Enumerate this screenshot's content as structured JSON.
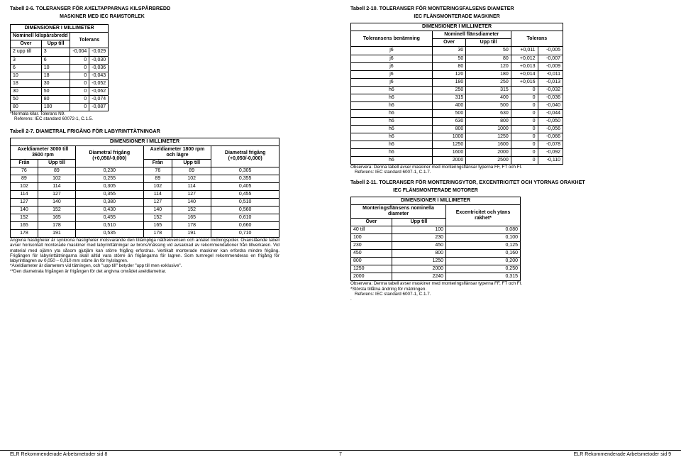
{
  "left": {
    "tab26_title": "Tabell 2-6.  TOLERANSER FÖR AXELTAPPARNAS KILSPÅRBREDD",
    "tab26_sub": "MASKINER MED IEC RAMSTORLEK",
    "dim_header": "DIMENSIONER I MILLIMETER",
    "nominell": "Nominell kilspårsbredd",
    "over": "Över",
    "upp": "Upp till",
    "tolerans": "Tolerans",
    "rows26": [
      [
        "2 upp till",
        "3",
        "-0,004",
        "-0,029"
      ],
      [
        "3",
        "6",
        "0",
        "-0,030"
      ],
      [
        "6",
        "10",
        "0",
        "-0,036"
      ],
      [
        "10",
        "18",
        "0",
        "-0,043"
      ],
      [
        "18",
        "30",
        "0",
        "-0,052"
      ],
      [
        "30",
        "50",
        "0",
        "-0,062"
      ],
      [
        "50",
        "80",
        "0",
        "-0,074"
      ],
      [
        "80",
        "100",
        "0",
        "-0,087"
      ]
    ],
    "foot26a": "*Normala kilar. Tolerans N9.",
    "foot26b": "Referens: IEC standard 60072-1, C.1.5.",
    "tab27_title": "Tabell 2-7.  DIAMETRAL FRIGÅNG FÖR LABYRINTTÄTNINGAR",
    "h27_axel1": "Axeldiameter 3000 till 3600 rpm",
    "h27_fran": "Från",
    "h27_upp": "Upp till",
    "h27_diam": "Diametral frigång (+0,050/-0,000)",
    "h27_axel2": "Axeldiameter 1800 rpm och lägre",
    "rows27": [
      [
        "76",
        "89",
        "0,230",
        "76",
        "89",
        "0,305"
      ],
      [
        "89",
        "102",
        "0,255",
        "89",
        "102",
        "0,355"
      ],
      [
        "102",
        "114",
        "0,305",
        "102",
        "114",
        "0,405"
      ],
      [
        "114",
        "127",
        "0,355",
        "114",
        "127",
        "0,455"
      ],
      [
        "127",
        "140",
        "0,380",
        "127",
        "140",
        "0,510"
      ],
      [
        "140",
        "152",
        "0,430",
        "140",
        "152",
        "0,560"
      ],
      [
        "152",
        "165",
        "0,455",
        "152",
        "165",
        "0,610"
      ],
      [
        "165",
        "178",
        "0,510",
        "165",
        "178",
        "0,660"
      ],
      [
        "178",
        "191",
        "0,535",
        "178",
        "191",
        "0,710"
      ]
    ],
    "note27": "Angivna hastigheter är synkrona hastigheter motsvarande den tillämpliga nätfrekvensen och antalet lindningspoler. Ovanstående tabell avser horisontalt monterade maskiner med labyrinttätningar av brons/mässing vid avsaknad av rekommendationer från tillverkaren. Vid material med ojämn yta såsom gjutjärn kan större frigång erfordras. Vertikalt monterade maskiner kan erfordra mindre frigång. Frigången för labyrinttätningarna skall alltid vara större än frigångarna för lagren. Som tumregel rekommenderas en frigång för labyrintlagren av 0,050 – 0,010 mm större än för hylslagren.",
    "note27b": "*Axeldiameter är diametern vid tätningen, och \"upp till\" betyder \"upp till men exklusive\".",
    "note27c": "**Den diametrala frigången är frigången för det angivna området axeldiametrar.",
    "footer": "ELR Rekommenderade Arbetsmetoder sid 8"
  },
  "right": {
    "tab210_title": "Tabell 2-10.  TOLERANSER FÖR MONTERINGSFALSENS DIAMETER",
    "tab210_sub": "IEC FLÄNSMONTERADE MASKINER",
    "dim_header": "DIMENSIONER I MILLIMETER",
    "tolben": "Toleransens benämning",
    "nomflans": "Nominell flänsdiameter",
    "over": "Över",
    "upp": "Upp till",
    "tolerans": "Tolerans",
    "rows210": [
      [
        "j6",
        "30",
        "50",
        "+0,011",
        "-0,005"
      ],
      [
        "j6",
        "50",
        "80",
        "+0,012",
        "-0,007"
      ],
      [
        "j6",
        "80",
        "120",
        "+0,013",
        "-0,009"
      ],
      [
        "j6",
        "120",
        "180",
        "+0,014",
        "-0,011"
      ],
      [
        "j6",
        "180",
        "250",
        "+0,016",
        "-0,013"
      ],
      [
        "h6",
        "250",
        "315",
        "0",
        "-0,032"
      ],
      [
        "h6",
        "315",
        "400",
        "0",
        "-0,036"
      ],
      [
        "h6",
        "400",
        "500",
        "0",
        "-0,040"
      ],
      [
        "h6",
        "500",
        "630",
        "0",
        "-0,044"
      ],
      [
        "h6",
        "630",
        "800",
        "0",
        "-0,050"
      ],
      [
        "h6",
        "800",
        "1000",
        "0",
        "-0,056"
      ],
      [
        "h6",
        "1000",
        "1250",
        "0",
        "-0,066"
      ],
      [
        "h6",
        "1250",
        "1600",
        "0",
        "-0,078"
      ],
      [
        "h6",
        "1600",
        "2000",
        "0",
        "-0,092"
      ],
      [
        "h6",
        "2000",
        "2500",
        "0",
        "-0,110"
      ]
    ],
    "obs210": "Observera: Denna tabell avser maskiner med monteringsflänsar typerna FF, FT och FI.",
    "ref210": "Referens: IEC standard 6007-1, C.1.7.",
    "tab211_title": "Tabell 2-11.  TOLERANSER FÖR MONTERINGSYTOR, EXCENTRICITET OCH YTORNAS ORAKHET",
    "tab211_sub": "IEC FLÄNSMONTERADE MOTORER",
    "mfnd": "Monteringsflänsens nominella diameter",
    "exc": "Excentricitet och ytans rakhet*",
    "rows211": [
      [
        "40 till",
        "100",
        "0,080"
      ],
      [
        "100",
        "230",
        "0,100"
      ],
      [
        "230",
        "450",
        "0,125"
      ],
      [
        "450",
        "800",
        "0,160"
      ],
      [
        "800",
        "1250",
        "0,200"
      ],
      [
        "1250",
        "2000",
        "0,250"
      ],
      [
        "2000",
        "2240",
        "0,315"
      ]
    ],
    "obs211": "Observera: Denna tabell avser maskiner med monteringsflänsar typerna FF, FT och FI.",
    "star211": "*Största tillåtna ändring för mätningen.",
    "ref211": "Referens: IEC standard 6007-1, C.1.7.",
    "footer": "ELR Rekommenderade Arbetsmetoder sid 9",
    "pagenum": "7"
  }
}
